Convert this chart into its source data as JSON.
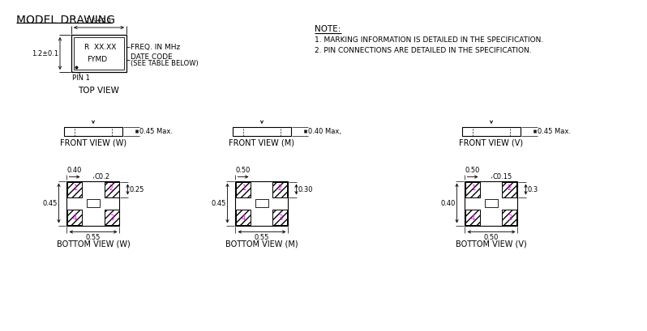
{
  "title": "MODEL DRAWING",
  "note_title": "NOTE:",
  "note1": "1. MARKING INFORMATION IS DETAILED IN THE SPECIFICATION.",
  "note2": "2. PIN CONNECTIONS ARE DETAILED IN THE SPECIFICATION.",
  "top_view_label": "TOP VIEW",
  "top_dim_width": "1.6±0.1",
  "top_dim_height": "1.2±0.1",
  "top_text1": "R  XX.XX",
  "top_text2": "FYMD",
  "top_annot1": "FREQ. IN MHz",
  "top_annot2": "DATE CODE",
  "top_annot3": "(SEE TABLE BELOW)",
  "top_pin": "PIN 1",
  "front_w_label": "FRONT VIEW (W)",
  "front_w_dim": "0.45 Max.",
  "front_m_label": "FRONT VIEW (M)",
  "front_m_dim": "0.40 Max,",
  "front_v_label": "FRONT VIEW (V)",
  "front_v_dim": "0.45 Max.",
  "bottom_w_label": "BOTTOM VIEW (W)",
  "bottom_m_label": "BOTTOM VIEW (M)",
  "bottom_v_label": "BOTTOM VIEW (V)",
  "bw_dim1": "0.40",
  "bw_dim2": "0.45",
  "bw_dim3": "0.55",
  "bw_dim4": "0.25",
  "bw_dim5": "C0.2",
  "bm_dim1": "0.50",
  "bm_dim2": "0.45",
  "bm_dim3": "0.55",
  "bm_dim4": "0.30",
  "bv_dim1": "0.50",
  "bv_dim2": "0.40",
  "bv_dim3": "0.50",
  "bv_dim4": "0.3",
  "bv_dim5": "C0.15",
  "bg_color": "#ffffff",
  "line_color": "#000000",
  "pin_color": "#ff00ff"
}
